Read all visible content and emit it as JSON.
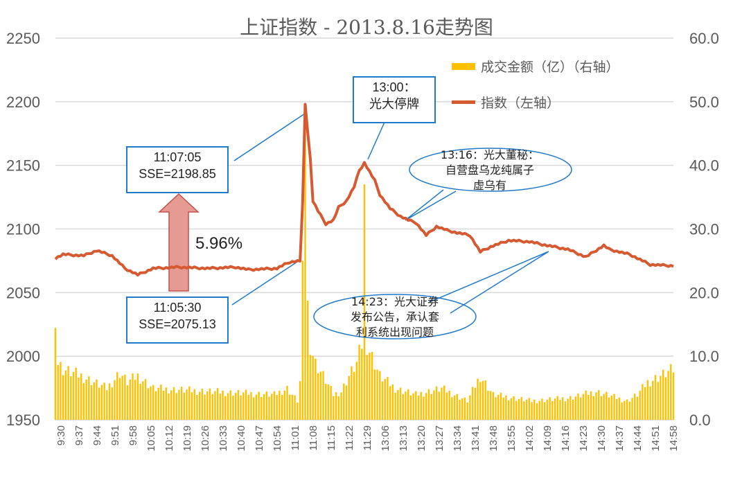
{
  "chart_data": {
    "type": "bar+line",
    "title": "上证指数 - 2013.8.16走势图",
    "left_axis": {
      "ylim": [
        1950,
        2250
      ],
      "ticks": [
        "1950",
        "2000",
        "2050",
        "2100",
        "2150",
        "2200",
        "2250"
      ]
    },
    "right_axis": {
      "ylim": [
        0,
        60
      ],
      "ticks": [
        "0.0",
        "10.0",
        "20.0",
        "30.0",
        "40.0",
        "50.0",
        "60.0"
      ]
    },
    "x_tick_labels": [
      "9:30",
      "9:37",
      "9:44",
      "9:51",
      "9:58",
      "10:05",
      "10:12",
      "10:19",
      "10:26",
      "10:33",
      "10:40",
      "10:47",
      "10:54",
      "11:01",
      "11:08",
      "11:15",
      "11:22",
      "11:29",
      "13:06",
      "13:13",
      "13:20",
      "13:27",
      "13:34",
      "13:41",
      "13:48",
      "13:55",
      "14:02",
      "14:09",
      "14:16",
      "14:23",
      "14:30",
      "14:37",
      "14:44",
      "14:51",
      "14:58"
    ],
    "grid": true,
    "legend_placement": "top-right",
    "series": [
      {
        "name": "成交金额（亿）（右轴）",
        "type": "bar",
        "axis": "right",
        "color": "#ffc000",
        "points_by_minute": [
          [
            0,
            17
          ],
          [
            1,
            9
          ],
          [
            3,
            8
          ],
          [
            10,
            7
          ],
          [
            20,
            5
          ],
          [
            25,
            7.5
          ],
          [
            28,
            6
          ],
          [
            32,
            7
          ],
          [
            38,
            5
          ],
          [
            60,
            4.5
          ],
          [
            85,
            4
          ],
          [
            90,
            5
          ],
          [
            94,
            3
          ],
          [
            95,
            6
          ],
          [
            96,
            25
          ],
          [
            97,
            48
          ],
          [
            98,
            18
          ],
          [
            99,
            12
          ],
          [
            101,
            9
          ],
          [
            104,
            7
          ],
          [
            108,
            4
          ],
          [
            111,
            4.5
          ],
          [
            114,
            7
          ],
          [
            117,
            9
          ],
          [
            119,
            12
          ],
          [
            120,
            37
          ],
          [
            121,
            12
          ],
          [
            123,
            10
          ],
          [
            126,
            7
          ],
          [
            132,
            5
          ],
          [
            140,
            4
          ],
          [
            150,
            5
          ],
          [
            160,
            3
          ],
          [
            165,
            7
          ],
          [
            170,
            4
          ],
          [
            185,
            3
          ],
          [
            200,
            3.5
          ],
          [
            210,
            4.5
          ],
          [
            222,
            3
          ],
          [
            226,
            4
          ],
          [
            230,
            6
          ],
          [
            240,
            8
          ]
        ]
      },
      {
        "name": "指数（左轴）",
        "type": "line",
        "axis": "left",
        "color": "#d65a31",
        "points_by_minute": [
          [
            0,
            2077
          ],
          [
            3,
            2080
          ],
          [
            11,
            2079
          ],
          [
            16,
            2083
          ],
          [
            22,
            2079
          ],
          [
            27,
            2069
          ],
          [
            32,
            2064
          ],
          [
            38,
            2069
          ],
          [
            48,
            2070
          ],
          [
            59,
            2069
          ],
          [
            70,
            2070
          ],
          [
            75,
            2068
          ],
          [
            86,
            2069
          ],
          [
            91,
            2074
          ],
          [
            95,
            2075
          ],
          [
            96,
            2120
          ],
          [
            97,
            2198
          ],
          [
            99,
            2155
          ],
          [
            100,
            2122
          ],
          [
            102,
            2114
          ],
          [
            105,
            2104
          ],
          [
            108,
            2107
          ],
          [
            110,
            2117
          ],
          [
            113,
            2122
          ],
          [
            116,
            2133
          ],
          [
            118,
            2146
          ],
          [
            120,
            2152
          ],
          [
            124,
            2138
          ],
          [
            126,
            2127
          ],
          [
            130,
            2116
          ],
          [
            134,
            2110
          ],
          [
            137,
            2107
          ],
          [
            140,
            2105
          ],
          [
            144,
            2095
          ],
          [
            148,
            2102
          ],
          [
            152,
            2099
          ],
          [
            156,
            2097
          ],
          [
            161,
            2095
          ],
          [
            165,
            2082
          ],
          [
            169,
            2086
          ],
          [
            176,
            2091
          ],
          [
            184,
            2090
          ],
          [
            191,
            2087
          ],
          [
            199,
            2084
          ],
          [
            206,
            2078
          ],
          [
            213,
            2087
          ],
          [
            215,
            2084
          ],
          [
            223,
            2080
          ],
          [
            231,
            2072
          ],
          [
            240,
            2071
          ]
        ]
      }
    ],
    "annotations": {
      "peak": {
        "time": "11:07:05",
        "value": "SSE=2198.85"
      },
      "start": {
        "time": "11:05:30",
        "value": "SSE=2075.13"
      },
      "change": "5.96%",
      "halt": {
        "line1": "13:00：",
        "line2": "光大停牌"
      },
      "secretary": {
        "line1": "13:16：光大董秘：",
        "line2": "自营盘乌龙纯属子",
        "line3": "虚乌有"
      },
      "notice": {
        "line1": "14:23：光大证券",
        "line2": "发布公告，承认套",
        "line3": "利系统出现问题"
      }
    }
  }
}
